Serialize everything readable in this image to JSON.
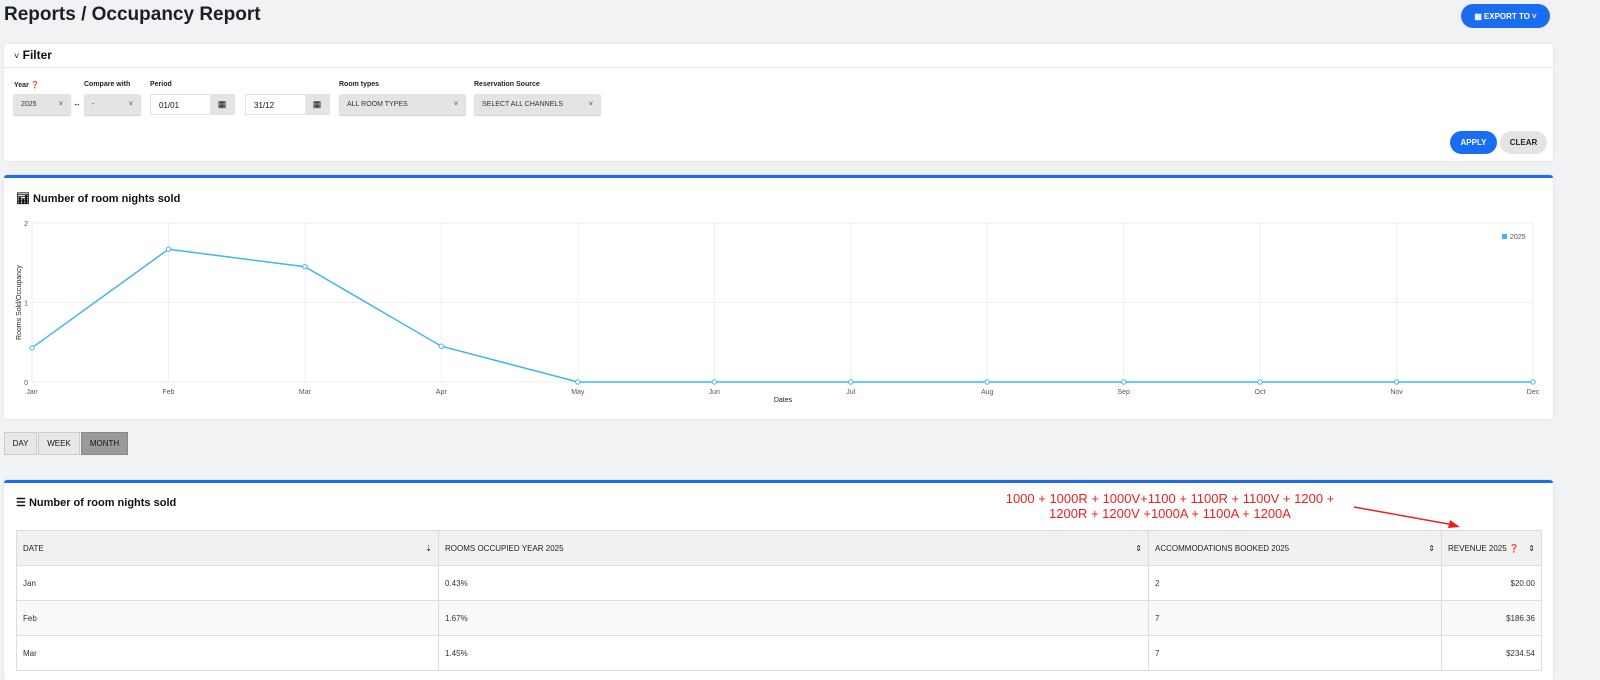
{
  "header": {
    "title": "Reports / Occupancy Report",
    "export_label": "EXPORT TO"
  },
  "filter": {
    "title": "Filter",
    "year_label": "Year",
    "year_value": "2025",
    "compare_label": "Compare with",
    "compare_value": "-",
    "period_label": "Period",
    "period_from": "01/01",
    "period_to": "31/12",
    "room_types_label": "Room types",
    "room_types_value": "ALL ROOM TYPES",
    "source_label": "Reservation Source",
    "source_value": "SELECT ALL CHANNELS",
    "apply": "APPLY",
    "clear": "CLEAR"
  },
  "chart_section": {
    "title": "Number of room nights sold"
  },
  "chart_data": {
    "type": "line",
    "title": "Number of room nights sold",
    "xlabel": "Dates",
    "ylabel": "Rooms Sold/Occupancy",
    "ylim": [
      0,
      2
    ],
    "yticks": [
      "0",
      "1",
      "2"
    ],
    "categories": [
      "Jan",
      "Feb",
      "Mar",
      "Apr",
      "May",
      "Jun",
      "Jul",
      "Aug",
      "Sep",
      "Oct",
      "Nov",
      "Dec"
    ],
    "series": [
      {
        "name": "2025",
        "color": "#3fb8e8",
        "values": [
          0.43,
          1.67,
          1.45,
          0.45,
          0,
          0,
          0,
          0,
          0,
          0,
          0,
          0
        ]
      }
    ],
    "legend": "top-right",
    "grid": true
  },
  "range_buttons": [
    "DAY",
    "WEEK",
    "MONTH"
  ],
  "table": {
    "title": "Number of room nights sold",
    "headers": [
      "DATE",
      "ROOMS OCCUPIED YEAR 2025",
      "ACCOMMODATIONS BOOKED 2025",
      "REVENUE 2025"
    ],
    "rows": [
      [
        "Jan",
        "0.43%",
        "2",
        "$20.00"
      ],
      [
        "Feb",
        "1.67%",
        "7",
        "$186.36"
      ],
      [
        "Mar",
        "1.45%",
        "7",
        "$234.54"
      ]
    ]
  },
  "annotation": "1000 + 1000R + 1000V+1100 + 1100R + 1100V + 1200 + 1200R + 1200V +1000A + 1100A + 1200A"
}
